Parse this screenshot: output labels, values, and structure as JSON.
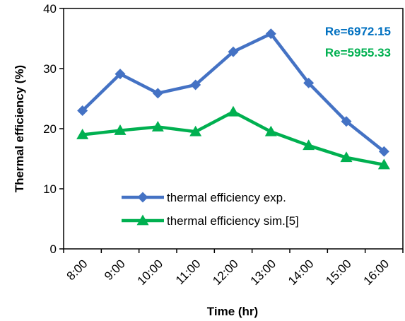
{
  "chart_data": {
    "type": "line",
    "title": "",
    "xlabel": "Time (hr)",
    "ylabel": "Thermal efficiency (%)",
    "ylim": [
      0,
      40
    ],
    "yticks": [
      0,
      10,
      20,
      30,
      40
    ],
    "grid": false,
    "legend_position": "bottom-center",
    "categories": [
      "8:00",
      "9:00",
      "10:00",
      "11:00",
      "12:00",
      "13:00",
      "14:00",
      "15:00",
      "16:00"
    ],
    "series": [
      {
        "name": "thermal efficiency exp.",
        "marker": "diamond",
        "color": "#4472C4",
        "values": [
          23.0,
          29.1,
          25.9,
          27.3,
          32.8,
          35.8,
          27.6,
          21.2,
          16.2
        ]
      },
      {
        "name": "thermal efficiency sim.[5]",
        "marker": "triangle",
        "color": "#00B050",
        "values": [
          19.0,
          19.7,
          20.3,
          19.5,
          22.8,
          19.5,
          17.2,
          15.2,
          14.0
        ]
      }
    ],
    "annotations": [
      {
        "text": "Re=6972.15",
        "color": "#0070C0"
      },
      {
        "text": "Re=5955.33",
        "color": "#00B050"
      }
    ]
  }
}
